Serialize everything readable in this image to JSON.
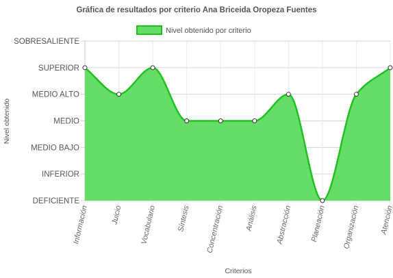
{
  "chart_data": {
    "type": "area",
    "title": "Gráfica de resultados por criterio Ana Briceida Oropeza Fuentes",
    "xlabel": "Criterios",
    "ylabel": "Nivel obtenido",
    "categories": [
      "Información",
      "Juicio",
      "Vocabulario",
      "Síntesis",
      "Concentración",
      "Análisis",
      "Abstracción",
      "Planeación",
      "Organización",
      "Atención"
    ],
    "y_levels": [
      "DEFICIENTE",
      "INFERIOR",
      "MEDIO BAJO",
      "MEDIO",
      "MEDIO ALTO",
      "SUPERIOR",
      "SOBRESALIENTE"
    ],
    "ylim": [
      0,
      6
    ],
    "grid": true,
    "legend_position": "top",
    "series": [
      {
        "name": "Nivel obtenido por criterio",
        "values": [
          5,
          4,
          5,
          3,
          3,
          3,
          4,
          0,
          4,
          5
        ],
        "line_color": "#1fc11f",
        "fill_color": "#66dd66"
      }
    ]
  }
}
